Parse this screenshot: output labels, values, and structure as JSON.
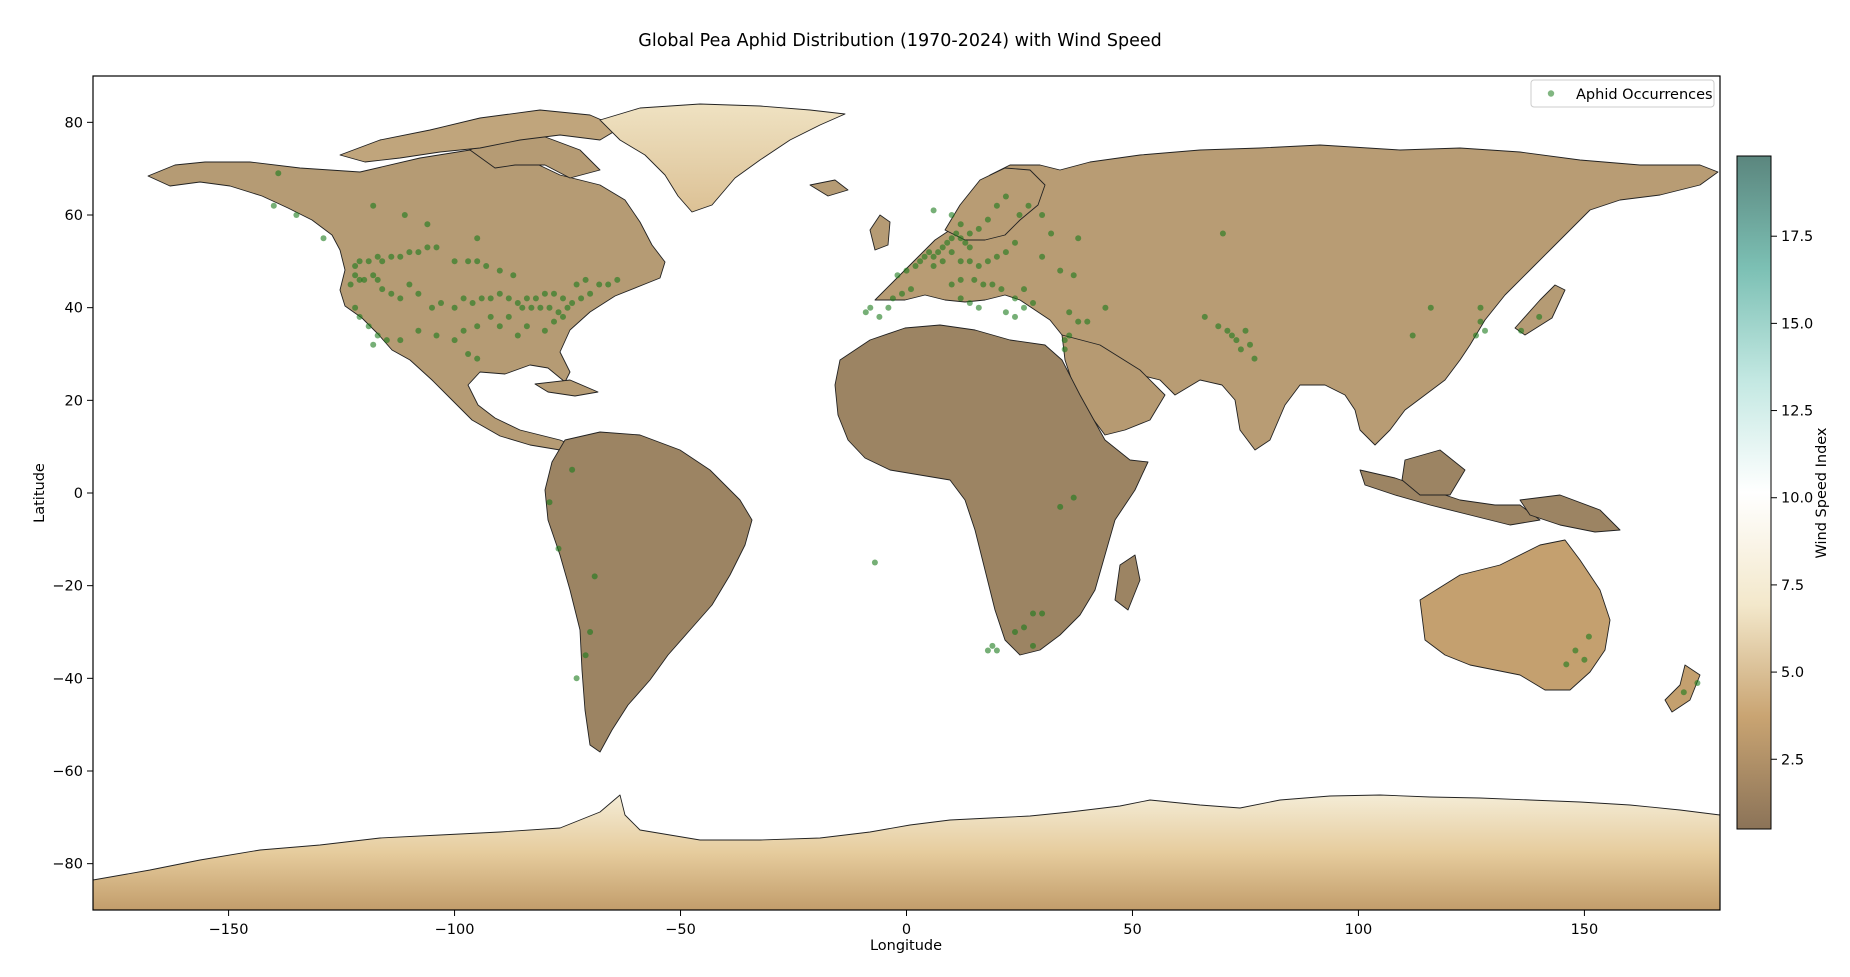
{
  "chart_data": {
    "type": "scatter",
    "title": "Global Pea Aphid Distribution (1970-2024) with Wind Speed",
    "xlabel": "Longitude",
    "ylabel": "Latitude",
    "xlim": [
      -180,
      180
    ],
    "ylim": [
      -90,
      90
    ],
    "x_ticks": [
      -150,
      -100,
      -50,
      0,
      50,
      100,
      150
    ],
    "x_tick_labels": [
      "−150",
      "−100",
      "−50",
      "0",
      "50",
      "100",
      "150"
    ],
    "y_ticks": [
      80,
      60,
      40,
      20,
      0,
      -20,
      -40,
      -60,
      -80
    ],
    "y_tick_labels": [
      "80",
      "60",
      "40",
      "20",
      "0",
      "−20",
      "−40",
      "−60",
      "−80"
    ],
    "legend": {
      "position": "top-right",
      "entries": [
        "Aphid Occurrences"
      ]
    },
    "colorbar": {
      "label": "Wind Speed Index",
      "range": [
        0.5,
        19.8
      ],
      "ticks": [
        2.5,
        5.0,
        7.5,
        10.0,
        12.5,
        15.0,
        17.5
      ],
      "tick_labels": [
        "2.5",
        "5.0",
        "7.5",
        "10.0",
        "12.5",
        "15.0",
        "17.5"
      ],
      "colormap": [
        "#8b7358",
        "#c9a472",
        "#f3e8cb",
        "#ffffff",
        "#c3e8e2",
        "#7cc0b4",
        "#5b867e"
      ]
    },
    "colors": {
      "land": "#b69a72",
      "ocean": "#ffffff",
      "points": "#1a7a1a"
    },
    "series": [
      {
        "name": "Aphid Occurrences",
        "points": [
          [
            -122,
            49
          ],
          [
            -121,
            50
          ],
          [
            -119,
            50
          ],
          [
            -117,
            51
          ],
          [
            -116,
            50
          ],
          [
            -114,
            51
          ],
          [
            -112,
            51
          ],
          [
            -110,
            52
          ],
          [
            -108,
            52
          ],
          [
            -106,
            53
          ],
          [
            -104,
            53
          ],
          [
            -100,
            50
          ],
          [
            -97,
            50
          ],
          [
            -95,
            50
          ],
          [
            -93,
            49
          ],
          [
            -123,
            45
          ],
          [
            -122,
            47
          ],
          [
            -121,
            46
          ],
          [
            -120,
            46
          ],
          [
            -118,
            47
          ],
          [
            -117,
            46
          ],
          [
            -116,
            44
          ],
          [
            -114,
            43
          ],
          [
            -112,
            42
          ],
          [
            -110,
            45
          ],
          [
            -108,
            43
          ],
          [
            -105,
            40
          ],
          [
            -103,
            41
          ],
          [
            -100,
            40
          ],
          [
            -98,
            42
          ],
          [
            -96,
            41
          ],
          [
            -94,
            42
          ],
          [
            -92,
            42
          ],
          [
            -90,
            43
          ],
          [
            -88,
            42
          ],
          [
            -86,
            41
          ],
          [
            -84,
            42
          ],
          [
            -82,
            42
          ],
          [
            -80,
            43
          ],
          [
            -78,
            43
          ],
          [
            -76,
            42
          ],
          [
            -74,
            41
          ],
          [
            -72,
            42
          ],
          [
            -70,
            43
          ],
          [
            -68,
            45
          ],
          [
            -66,
            45
          ],
          [
            -85,
            40
          ],
          [
            -83,
            40
          ],
          [
            -81,
            40
          ],
          [
            -79,
            40
          ],
          [
            -77,
            39
          ],
          [
            -75,
            40
          ],
          [
            -88,
            38
          ],
          [
            -90,
            36
          ],
          [
            -92,
            38
          ],
          [
            -95,
            36
          ],
          [
            -98,
            35
          ],
          [
            -100,
            33
          ],
          [
            -104,
            34
          ],
          [
            -108,
            35
          ],
          [
            -112,
            33
          ],
          [
            -115,
            33
          ],
          [
            -117,
            34
          ],
          [
            -119,
            36
          ],
          [
            -121,
            38
          ],
          [
            -122,
            40
          ],
          [
            -118,
            32
          ],
          [
            -97,
            30
          ],
          [
            -95,
            29
          ],
          [
            -86,
            34
          ],
          [
            -84,
            36
          ],
          [
            -80,
            35
          ],
          [
            -78,
            37
          ],
          [
            -76,
            38
          ],
          [
            -118,
            62
          ],
          [
            -111,
            60
          ],
          [
            -106,
            58
          ],
          [
            -95,
            55
          ],
          [
            -90,
            48
          ],
          [
            -87,
            47
          ],
          [
            -73,
            45
          ],
          [
            -71,
            46
          ],
          [
            -64,
            46
          ],
          [
            -129,
            55
          ],
          [
            -135,
            60
          ],
          [
            -140,
            62
          ],
          [
            -139,
            69
          ],
          [
            -9,
            39
          ],
          [
            -8,
            40
          ],
          [
            -6,
            38
          ],
          [
            -4,
            40
          ],
          [
            -3,
            42
          ],
          [
            -1,
            43
          ],
          [
            1,
            44
          ],
          [
            -2,
            47
          ],
          [
            0,
            48
          ],
          [
            2,
            49
          ],
          [
            3,
            50
          ],
          [
            4,
            51
          ],
          [
            5,
            52
          ],
          [
            6,
            51
          ],
          [
            7,
            52
          ],
          [
            8,
            53
          ],
          [
            9,
            54
          ],
          [
            10,
            55
          ],
          [
            11,
            56
          ],
          [
            12,
            55
          ],
          [
            13,
            54
          ],
          [
            14,
            53
          ],
          [
            10,
            52
          ],
          [
            8,
            50
          ],
          [
            6,
            49
          ],
          [
            12,
            50
          ],
          [
            14,
            50
          ],
          [
            16,
            49
          ],
          [
            18,
            50
          ],
          [
            20,
            51
          ],
          [
            22,
            52
          ],
          [
            24,
            54
          ],
          [
            17,
            45
          ],
          [
            19,
            45
          ],
          [
            21,
            44
          ],
          [
            15,
            46
          ],
          [
            12,
            46
          ],
          [
            10,
            45
          ],
          [
            12,
            42
          ],
          [
            14,
            41
          ],
          [
            16,
            40
          ],
          [
            22,
            39
          ],
          [
            24,
            38
          ],
          [
            26,
            40
          ],
          [
            28,
            41
          ],
          [
            24,
            42
          ],
          [
            26,
            44
          ],
          [
            18,
            59
          ],
          [
            16,
            57
          ],
          [
            14,
            56
          ],
          [
            12,
            58
          ],
          [
            10,
            60
          ],
          [
            6,
            61
          ],
          [
            20,
            62
          ],
          [
            22,
            64
          ],
          [
            25,
            60
          ],
          [
            27,
            62
          ],
          [
            30,
            60
          ],
          [
            32,
            56
          ],
          [
            38,
            55
          ],
          [
            30,
            51
          ],
          [
            34,
            48
          ],
          [
            37,
            47
          ],
          [
            36,
            39
          ],
          [
            38,
            37
          ],
          [
            40,
            37
          ],
          [
            44,
            40
          ],
          [
            35,
            33
          ],
          [
            35,
            31
          ],
          [
            36,
            34
          ],
          [
            70,
            56
          ],
          [
            66,
            38
          ],
          [
            69,
            36
          ],
          [
            71,
            35
          ],
          [
            72,
            34
          ],
          [
            73,
            33
          ],
          [
            74,
            31
          ],
          [
            76,
            32
          ],
          [
            77,
            29
          ],
          [
            75,
            35
          ],
          [
            112,
            34
          ],
          [
            116,
            40
          ],
          [
            127,
            37
          ],
          [
            128,
            35
          ],
          [
            126,
            34
          ],
          [
            136,
            35
          ],
          [
            140,
            38
          ],
          [
            127,
            40
          ],
          [
            -69,
            -18
          ],
          [
            -71,
            -35
          ],
          [
            -73,
            -40
          ],
          [
            -70,
            -30
          ],
          [
            -77,
            -12
          ],
          [
            -79,
            -2
          ],
          [
            -74,
            5
          ],
          [
            34,
            -3
          ],
          [
            37,
            -1
          ],
          [
            30,
            -26
          ],
          [
            28,
            -26
          ],
          [
            26,
            -29
          ],
          [
            28,
            -33
          ],
          [
            20,
            -34
          ],
          [
            19,
            -33
          ],
          [
            18,
            -34
          ],
          [
            24,
            -30
          ],
          [
            146,
            -37
          ],
          [
            151,
            -31
          ],
          [
            150,
            -36
          ],
          [
            148,
            -34
          ],
          [
            175,
            -41
          ],
          [
            172,
            -43
          ],
          [
            -7,
            -15
          ]
        ]
      }
    ]
  }
}
